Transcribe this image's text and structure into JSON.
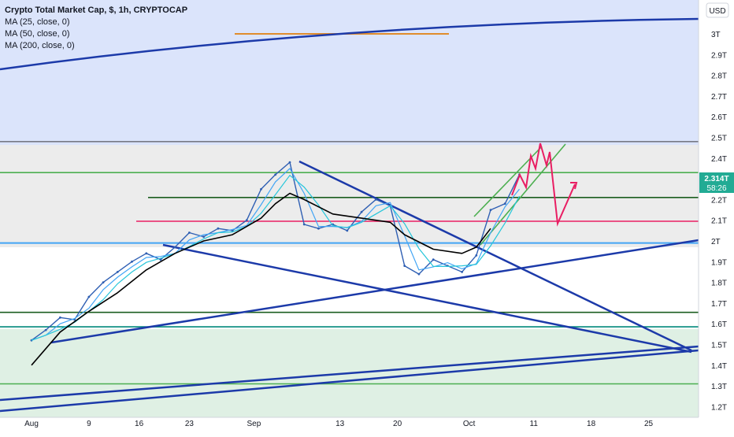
{
  "header": {
    "title": "Crypto Total Market Cap, $, 1h, CRYPTOCAP",
    "indicators": [
      "MA (25, close, 0)",
      "MA (50, close, 0)",
      "MA (200, close, 0)"
    ],
    "currency_button": "USD"
  },
  "price_tag": {
    "value": "2.314T",
    "countdown": "58:26"
  },
  "colors": {
    "blue_zone": "#dbe4fb",
    "gray_zone": "#ececec",
    "green_zone": "#dff0e4",
    "trendline": "#1c3aa9",
    "green_line": "#4caf50",
    "dark_green_line": "#1b5e20",
    "pink_line": "#e91e63",
    "orange_line": "#e08c2c",
    "gray_line": "#787b86",
    "light_blue_line": "#42a5f5",
    "price_tag_bg": "#22ab94",
    "ma25": "#42a5f5",
    "ma50": "#26c6da",
    "ma200": "#000000",
    "candles": "#2f5fb3"
  },
  "chart_data": {
    "type": "line",
    "title": "Crypto Total Market Cap, $, 1h, CRYPTOCAP",
    "x_tick_labels": [
      "Aug",
      "9",
      "16",
      "23",
      "Sep",
      "13",
      "20",
      "Oct",
      "11",
      "18",
      "25"
    ],
    "y_tick_labels": [
      "3T",
      "2.9T",
      "2.8T",
      "2.7T",
      "2.6T",
      "2.5T",
      "2.4T",
      "2.3T",
      "2.2T",
      "2.1T",
      "2T",
      "1.9T",
      "1.8T",
      "1.7T",
      "1.6T",
      "1.5T",
      "1.4T",
      "1.3T",
      "1.2T"
    ],
    "y_values_T": [
      3.0,
      2.9,
      2.8,
      2.7,
      2.6,
      2.5,
      2.4,
      2.3,
      2.2,
      2.1,
      2.0,
      1.9,
      1.8,
      1.7,
      1.6,
      1.5,
      1.4,
      1.3,
      1.2
    ],
    "ylim_T": [
      1.16,
      3.08
    ],
    "x_range_days": [
      1,
      88
    ],
    "grid": false,
    "series": [
      {
        "name": "Crypto Total Market Cap",
        "x_day": [
          1,
          3,
          5,
          7,
          9,
          11,
          13,
          15,
          17,
          19,
          21,
          23,
          25,
          27,
          29,
          31,
          33,
          35,
          37,
          39,
          41,
          43,
          45,
          47,
          49,
          51,
          53,
          55,
          57,
          59,
          61,
          63,
          65,
          67,
          69
        ],
        "y_T": [
          1.52,
          1.57,
          1.63,
          1.62,
          1.73,
          1.8,
          1.85,
          1.9,
          1.94,
          1.91,
          1.97,
          2.04,
          2.02,
          2.06,
          2.05,
          2.1,
          2.25,
          2.32,
          2.38,
          2.08,
          2.06,
          2.08,
          2.05,
          2.14,
          2.2,
          2.17,
          1.88,
          1.84,
          1.91,
          1.88,
          1.85,
          1.93,
          2.15,
          2.18,
          2.32
        ]
      },
      {
        "name": "MA (200, close, 0)",
        "x_day": [
          1,
          5,
          9,
          13,
          17,
          21,
          25,
          29,
          33,
          35,
          37,
          39,
          43,
          47,
          51,
          53,
          57,
          61,
          63,
          65
        ],
        "y_T": [
          1.4,
          1.56,
          1.66,
          1.75,
          1.86,
          1.94,
          2.0,
          2.03,
          2.11,
          2.18,
          2.23,
          2.2,
          2.13,
          2.11,
          2.09,
          2.03,
          1.96,
          1.94,
          1.97,
          2.06
        ]
      }
    ],
    "horizontal_levels_T": [
      2.48,
      2.33,
      2.21,
      2.095,
      1.99,
      1.655,
      1.585,
      1.31
    ],
    "annotations": []
  }
}
